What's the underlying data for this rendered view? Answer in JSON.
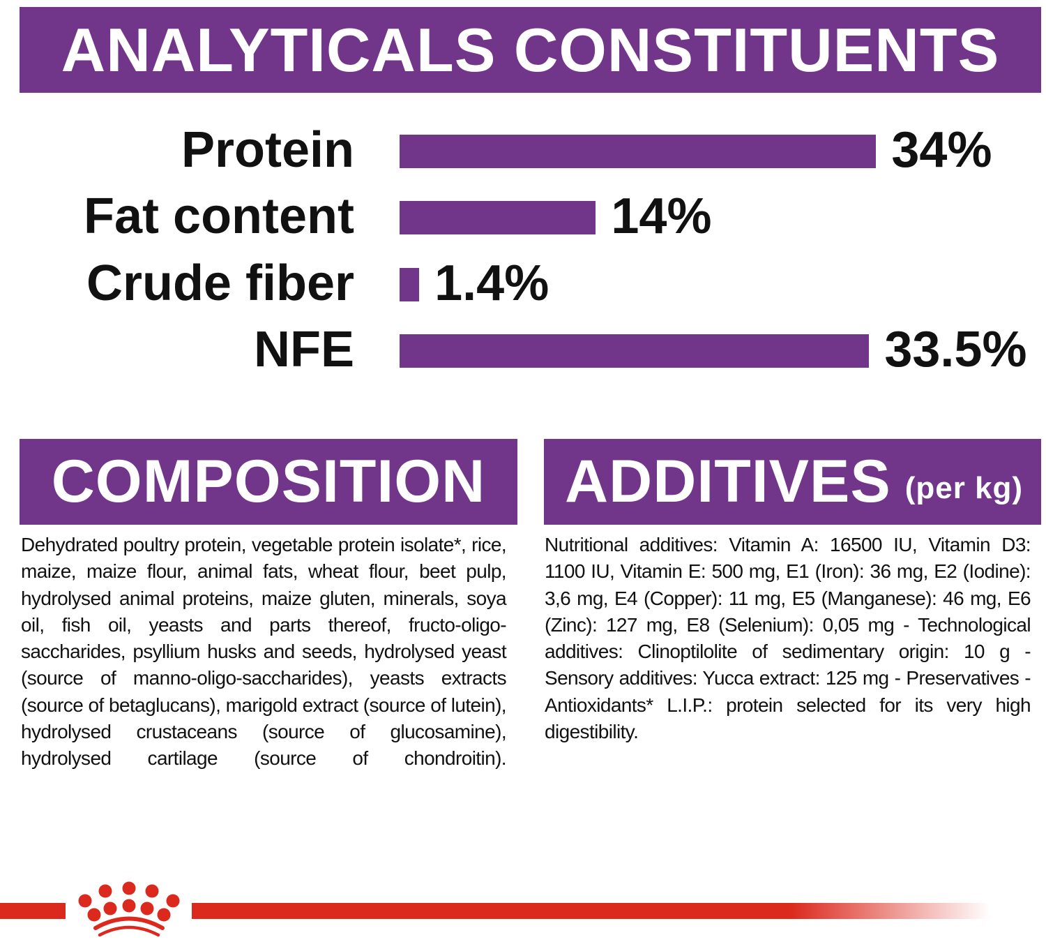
{
  "header": {
    "title": "ANALYTICALS CONSTITUENTS"
  },
  "chart_data": {
    "type": "bar",
    "orientation": "horizontal",
    "categories": [
      "Protein",
      "Fat content",
      "Crude fiber",
      "NFE"
    ],
    "values": [
      34,
      14,
      1.4,
      33.5
    ],
    "value_labels": [
      "34%",
      "14%",
      "1.4%",
      "33.5%"
    ],
    "unit": "%",
    "title": "ANALYTICALS CONSTITUENTS",
    "bar_color": "#71368a"
  },
  "composition": {
    "title": "COMPOSITION",
    "text": "Dehydrated poultry protein, vegetable protein isolate*, rice, maize, maize flour, animal fats, wheat flour, beet pulp, hydrolysed animal proteins, maize gluten, minerals, soya oil, fish oil, yeasts and parts thereof, fructo-oligo-saccharides, psyllium husks and seeds, hydrolysed yeast (source of manno-oligo-saccharides), yeasts extracts (source of betaglucans), marigold extract (source of lutein), hydrolysed crustaceans (source of glucosamine), hydrolysed cartilage (source of chondroitin)."
  },
  "additives": {
    "title": "ADDITIVES",
    "subtitle": "(per kg)",
    "text": "Nutritional additives: Vitamin A: 16500 IU, Vitamin D3: 1100 IU, Vitamin E: 500 mg, E1 (Iron): 36 mg, E2 (Iodine): 3,6 mg, E4 (Copper): 11 mg, E5 (Manganese): 46 mg, E6 (Zinc): 127 mg, E8 (Selenium): 0,05 mg - Technological additives: Clinoptilolite of sedimentary origin: 10 g - Sensory additives: Yucca extract: 125 mg - Preservatives - Antioxidants* L.I.P.: protein selected for its very high digestibility."
  },
  "colors": {
    "brand_purple": "#71368a",
    "brand_red": "#dc291e"
  },
  "logo": {
    "icon": "crown-icon"
  }
}
